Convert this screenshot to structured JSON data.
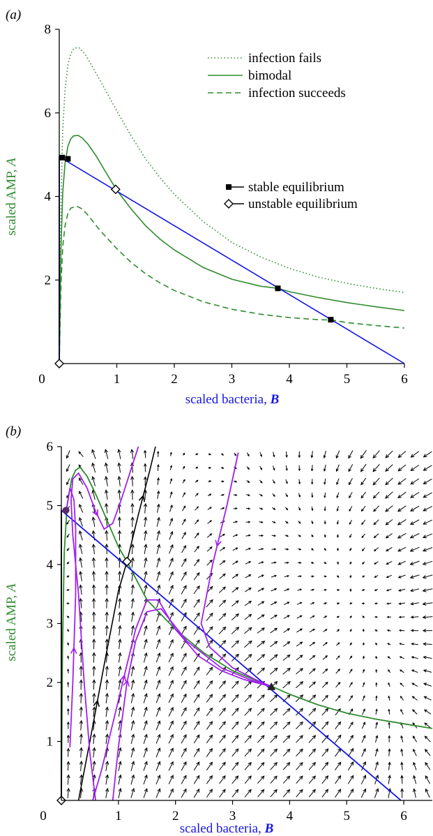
{
  "chart_data": [
    {
      "type": "line",
      "panel_label": "(a)",
      "xlabel_prefix": "scaled bacteria, ",
      "xlabel_var": "B",
      "ylabel_prefix": "scaled AMP, ",
      "ylabel_var": "A",
      "xlim": [
        0,
        6
      ],
      "ylim": [
        0,
        8
      ],
      "x_ticks": [
        1,
        2,
        3,
        4,
        5,
        6
      ],
      "y_ticks": [
        2,
        4,
        6,
        8
      ],
      "origin_label": "0",
      "grid": false,
      "colors": {
        "amp": "#2e8b2e",
        "bacteria": "#1515e6",
        "axis": "#000000"
      },
      "legend_placement": "top-right",
      "legend_curves": [
        {
          "label": "infection fails",
          "style": "dotted"
        },
        {
          "label": "bimodal",
          "style": "solid"
        },
        {
          "label": "infection succeeds",
          "style": "dashed"
        }
      ],
      "legend_markers": [
        {
          "label": "stable equilibrium",
          "marker": "square"
        },
        {
          "label": "unstable equilibrium",
          "marker": "diamond"
        }
      ],
      "series": [
        {
          "style": "dotted",
          "peak": [
            0.35,
            7.55
          ],
          "points": [
            [
              0,
              0
            ],
            [
              0.03,
              3.8
            ],
            [
              0.06,
              5.6
            ],
            [
              0.1,
              6.55
            ],
            [
              0.15,
              7.15
            ],
            [
              0.2,
              7.42
            ],
            [
              0.25,
              7.53
            ],
            [
              0.3,
              7.56
            ],
            [
              0.35,
              7.55
            ],
            [
              0.45,
              7.4
            ],
            [
              0.6,
              7.05
            ],
            [
              0.8,
              6.55
            ],
            [
              1.0,
              6.05
            ],
            [
              1.25,
              5.45
            ],
            [
              1.5,
              4.9
            ],
            [
              1.75,
              4.45
            ],
            [
              2.0,
              4.05
            ],
            [
              2.5,
              3.4
            ],
            [
              3.0,
              2.9
            ],
            [
              3.5,
              2.55
            ],
            [
              4.0,
              2.28
            ],
            [
              4.5,
              2.07
            ],
            [
              5.0,
              1.92
            ],
            [
              5.5,
              1.8
            ],
            [
              6.0,
              1.7
            ]
          ]
        },
        {
          "style": "solid",
          "peak": [
            0.33,
            5.45
          ],
          "points": [
            [
              0,
              0
            ],
            [
              0.03,
              2.8
            ],
            [
              0.06,
              4.1
            ],
            [
              0.1,
              4.8
            ],
            [
              0.15,
              5.2
            ],
            [
              0.2,
              5.38
            ],
            [
              0.25,
              5.45
            ],
            [
              0.33,
              5.46
            ],
            [
              0.4,
              5.4
            ],
            [
              0.5,
              5.25
            ],
            [
              0.65,
              4.95
            ],
            [
              0.8,
              4.6
            ],
            [
              1.0,
              4.15
            ],
            [
              1.25,
              3.7
            ],
            [
              1.5,
              3.3
            ],
            [
              1.75,
              2.98
            ],
            [
              2.0,
              2.72
            ],
            [
              2.5,
              2.3
            ],
            [
              3.0,
              2.02
            ],
            [
              3.5,
              1.85
            ],
            [
              3.8,
              1.8
            ],
            [
              4.0,
              1.72
            ],
            [
              4.5,
              1.58
            ],
            [
              5.0,
              1.46
            ],
            [
              5.5,
              1.36
            ],
            [
              6.0,
              1.27
            ]
          ]
        },
        {
          "style": "dashed",
          "peak": [
            0.3,
            3.77
          ],
          "points": [
            [
              0,
              0
            ],
            [
              0.03,
              1.9
            ],
            [
              0.06,
              2.8
            ],
            [
              0.1,
              3.3
            ],
            [
              0.15,
              3.6
            ],
            [
              0.2,
              3.72
            ],
            [
              0.3,
              3.77
            ],
            [
              0.4,
              3.7
            ],
            [
              0.5,
              3.55
            ],
            [
              0.7,
              3.2
            ],
            [
              1.0,
              2.75
            ],
            [
              1.25,
              2.42
            ],
            [
              1.5,
              2.15
            ],
            [
              1.75,
              1.93
            ],
            [
              2.0,
              1.75
            ],
            [
              2.5,
              1.48
            ],
            [
              3.0,
              1.3
            ],
            [
              3.5,
              1.18
            ],
            [
              4.0,
              1.1
            ],
            [
              4.5,
              1.05
            ],
            [
              4.75,
              1.04
            ],
            [
              5.0,
              0.98
            ],
            [
              5.5,
              0.91
            ],
            [
              6.0,
              0.85
            ]
          ]
        },
        {
          "style": "bacteria",
          "points": [
            [
              0,
              0
            ],
            [
              0,
              4.95
            ],
            [
              6.0,
              0
            ]
          ]
        }
      ],
      "stable_equilibria": [
        [
          0.05,
          4.93
        ],
        [
          0.15,
          4.9
        ],
        [
          3.8,
          1.8
        ],
        [
          4.72,
          1.05
        ]
      ],
      "unstable_equilibria": [
        [
          0,
          0
        ],
        [
          0.98,
          4.17
        ]
      ]
    },
    {
      "type": "vector_field",
      "panel_label": "(b)",
      "xlabel_prefix": "scaled bacteria, ",
      "xlabel_var": "B",
      "ylabel_prefix": "scaled AMP, ",
      "ylabel_var": "A",
      "xlim": [
        0,
        6.5
      ],
      "ylim": [
        0,
        6
      ],
      "x_ticks": [
        1,
        2,
        3,
        4,
        5,
        6
      ],
      "y_ticks": [
        1,
        2,
        3,
        4,
        5,
        6
      ],
      "origin_label": "0",
      "grid": false,
      "colors": {
        "amp": "#2e8b2e",
        "bacteria": "#1515e6",
        "trajectory": "#a020f0",
        "separatrix": "#000000"
      },
      "amp_nullcline": [
        [
          0,
          0
        ],
        [
          0.02,
          2.5
        ],
        [
          0.05,
          4.2
        ],
        [
          0.1,
          5.0
        ],
        [
          0.18,
          5.45
        ],
        [
          0.25,
          5.6
        ],
        [
          0.33,
          5.65
        ],
        [
          0.45,
          5.5
        ],
        [
          0.6,
          5.2
        ],
        [
          0.8,
          4.75
        ],
        [
          1.0,
          4.3
        ],
        [
          1.15,
          4.05
        ],
        [
          1.5,
          3.4
        ],
        [
          2.0,
          2.9
        ],
        [
          2.5,
          2.5
        ],
        [
          3.0,
          2.2
        ],
        [
          3.5,
          2.0
        ],
        [
          3.7,
          1.93
        ],
        [
          4.0,
          1.8
        ],
        [
          4.5,
          1.62
        ],
        [
          5.0,
          1.48
        ],
        [
          5.5,
          1.38
        ],
        [
          6.0,
          1.3
        ],
        [
          6.5,
          1.22
        ]
      ],
      "bacteria_nullcline": [
        [
          0,
          0
        ],
        [
          0,
          4.92
        ],
        [
          5.95,
          0
        ]
      ],
      "separatrix": [
        [
          0.3,
          0
        ],
        [
          0.5,
          1.0
        ],
        [
          0.75,
          2.3
        ],
        [
          1.0,
          3.55
        ],
        [
          1.15,
          4.05
        ],
        [
          1.35,
          4.85
        ],
        [
          1.55,
          5.6
        ],
        [
          1.65,
          6.0
        ]
      ],
      "trajectories": [
        [
          [
            0.6,
            0
          ],
          [
            0.5,
            0.8
          ],
          [
            0.4,
            2.0
          ],
          [
            0.3,
            3.5
          ],
          [
            0.2,
            4.5
          ],
          [
            0.17,
            5.1
          ],
          [
            0.2,
            5.45
          ],
          [
            0.3,
            5.55
          ],
          [
            0.45,
            5.3
          ],
          [
            0.6,
            4.9
          ],
          [
            0.75,
            4.6
          ],
          [
            0.9,
            4.7
          ],
          [
            1.05,
            5.1
          ],
          [
            1.25,
            5.7
          ],
          [
            1.35,
            6.0
          ]
        ],
        [
          [
            0.15,
            0.9
          ],
          [
            0.2,
            2.0
          ],
          [
            0.25,
            3.5
          ],
          [
            0.25,
            4.6
          ],
          [
            0.22,
            5.1
          ],
          [
            0.15,
            5.3
          ],
          [
            0.1,
            5.0
          ],
          [
            0.08,
            4.9
          ]
        ],
        [
          [
            0.55,
            0
          ],
          [
            0.7,
            0.5
          ],
          [
            0.9,
            1.3
          ],
          [
            1.1,
            2.1
          ],
          [
            1.3,
            2.9
          ],
          [
            1.5,
            3.4
          ],
          [
            1.7,
            3.4
          ],
          [
            2.0,
            2.9
          ],
          [
            2.4,
            2.45
          ],
          [
            2.8,
            2.2
          ],
          [
            3.2,
            2.05
          ],
          [
            3.68,
            1.93
          ]
        ],
        [
          [
            0.9,
            0
          ],
          [
            1.0,
            0.9
          ],
          [
            1.15,
            2.0
          ],
          [
            1.3,
            2.7
          ],
          [
            1.5,
            3.2
          ],
          [
            1.75,
            3.25
          ],
          [
            2.2,
            2.7
          ],
          [
            2.8,
            2.25
          ],
          [
            3.3,
            2.05
          ],
          [
            3.68,
            1.93
          ]
        ],
        [
          [
            3.1,
            5.9
          ],
          [
            2.9,
            5.0
          ],
          [
            2.65,
            4.0
          ],
          [
            2.45,
            3.0
          ],
          [
            2.6,
            2.6
          ],
          [
            3.0,
            2.25
          ],
          [
            3.4,
            2.05
          ],
          [
            3.68,
            1.93
          ]
        ]
      ],
      "stable_equilibria": [
        [
          0.08,
          4.92
        ],
        [
          3.68,
          1.93
        ]
      ],
      "unstable_equilibria": [
        [
          0,
          0
        ],
        [
          1.15,
          4.05
        ]
      ]
    }
  ]
}
